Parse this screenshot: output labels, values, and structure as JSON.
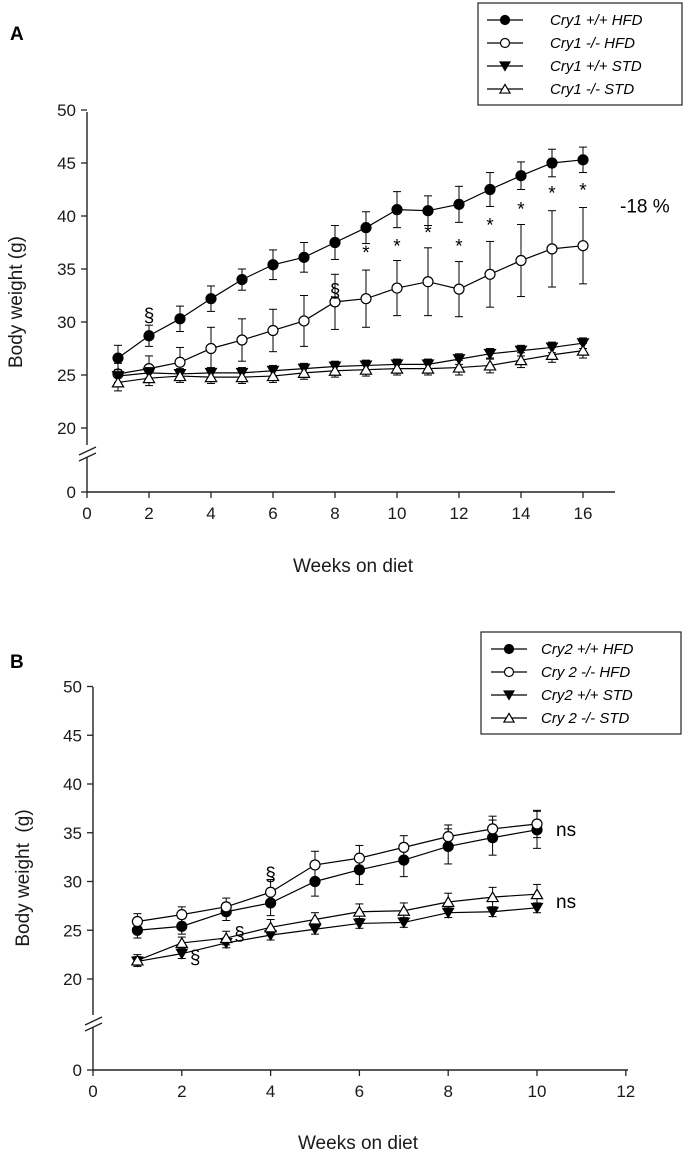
{
  "chart_data": [
    {
      "panel": "A",
      "type": "line",
      "xlabel": "Weeks on diet",
      "ylabel": "Body weight (g)",
      "xlim": [
        0,
        17
      ],
      "x_ticks": [
        0,
        2,
        4,
        6,
        8,
        10,
        12,
        14,
        16
      ],
      "y_ticks": [
        0,
        20,
        25,
        30,
        35,
        40,
        45,
        50
      ],
      "y_break": [
        0,
        20
      ],
      "x": [
        1,
        2,
        3,
        4,
        5,
        6,
        7,
        8,
        9,
        10,
        11,
        12,
        13,
        14,
        15,
        16
      ],
      "series": [
        {
          "name": "+/+ HFD",
          "gene": "Cry1",
          "marker": "filled-circle",
          "values": [
            26.6,
            28.7,
            30.3,
            32.2,
            34.0,
            35.4,
            36.1,
            37.5,
            38.9,
            40.6,
            40.5,
            41.1,
            42.5,
            43.8,
            45.0,
            45.3
          ],
          "errors": [
            1.2,
            1.0,
            1.2,
            1.2,
            1.0,
            1.4,
            1.4,
            1.6,
            1.5,
            1.7,
            1.4,
            1.7,
            1.6,
            1.3,
            1.3,
            1.2
          ]
        },
        {
          "name": "-/-  HFD",
          "gene": "Cry1",
          "marker": "open-circle",
          "values": [
            25.1,
            25.6,
            26.2,
            27.5,
            28.3,
            29.2,
            30.1,
            31.9,
            32.2,
            33.2,
            33.8,
            33.1,
            34.5,
            35.8,
            36.9,
            37.2
          ],
          "errors": [
            1.0,
            1.2,
            1.4,
            2.0,
            2.0,
            2.0,
            2.4,
            2.6,
            2.7,
            2.6,
            3.2,
            2.6,
            3.1,
            3.4,
            3.6,
            3.6
          ]
        },
        {
          "name": "+/+ STD",
          "gene": "Cry1",
          "marker": "filled-triangle-down",
          "values": [
            24.9,
            25.2,
            25.1,
            25.2,
            25.2,
            25.4,
            25.6,
            25.8,
            25.9,
            26.0,
            26.0,
            26.5,
            27.0,
            27.3,
            27.6,
            28.0
          ],
          "errors": [
            0.6,
            0.5,
            0.5,
            0.5,
            0.5,
            0.5,
            0.5,
            0.5,
            0.5,
            0.5,
            0.5,
            0.5,
            0.5,
            0.5,
            0.5,
            0.5
          ]
        },
        {
          "name": "-/-   STD",
          "gene": "Cry1",
          "marker": "open-triangle-up",
          "values": [
            24.3,
            24.7,
            24.9,
            24.8,
            24.8,
            24.9,
            25.2,
            25.4,
            25.5,
            25.6,
            25.6,
            25.7,
            25.9,
            26.4,
            26.9,
            27.3
          ],
          "errors": [
            0.8,
            0.7,
            0.6,
            0.6,
            0.6,
            0.6,
            0.6,
            0.6,
            0.6,
            0.6,
            0.6,
            0.7,
            0.7,
            0.7,
            0.7,
            0.7
          ]
        }
      ],
      "annotations": [
        {
          "text": "§",
          "x": 2,
          "y": 30.7
        },
        {
          "text": "§",
          "x": 8,
          "y": 33.0
        },
        {
          "text": "*",
          "x": 9,
          "y": 36.6
        },
        {
          "text": "*",
          "x": 10,
          "y": 37.2
        },
        {
          "text": "*",
          "x": 11,
          "y": 38.5
        },
        {
          "text": "*",
          "x": 12,
          "y": 37.2
        },
        {
          "text": "*",
          "x": 13,
          "y": 39.2
        },
        {
          "text": "*",
          "x": 14,
          "y": 40.7
        },
        {
          "text": "*",
          "x": 15,
          "y": 42.2
        },
        {
          "text": "*",
          "x": 16,
          "y": 42.5
        }
      ],
      "side_label": {
        "text": "-18 %",
        "y": 41.0
      }
    },
    {
      "panel": "B",
      "type": "line",
      "xlabel": "Weeks on diet",
      "ylabel": "Body weight  (g)",
      "xlim": [
        0,
        12
      ],
      "x_ticks": [
        0,
        2,
        4,
        6,
        8,
        10,
        12
      ],
      "y_ticks": [
        0,
        20,
        25,
        30,
        35,
        40,
        45,
        50
      ],
      "y_break": [
        0,
        20
      ],
      "x": [
        1,
        2,
        3,
        4,
        5,
        6,
        7,
        8,
        9,
        10
      ],
      "series": [
        {
          "name": "+/+ HFD",
          "gene": "Cry2",
          "marker": "filled-circle",
          "values": [
            25.0,
            25.4,
            26.9,
            27.8,
            30.0,
            31.2,
            32.2,
            33.6,
            34.5,
            35.3
          ],
          "errors": [
            0.8,
            0.8,
            0.9,
            1.3,
            1.5,
            1.5,
            1.7,
            1.8,
            1.8,
            1.9
          ]
        },
        {
          "name": "-/-  HFD",
          "gene": "Cry 2",
          "marker": "open-circle",
          "values": [
            25.9,
            26.6,
            27.4,
            28.9,
            31.7,
            32.4,
            33.5,
            34.6,
            35.4,
            35.9
          ],
          "errors": [
            0.8,
            0.8,
            0.9,
            1.3,
            1.4,
            1.3,
            1.2,
            1.2,
            1.3,
            1.4
          ]
        },
        {
          "name": "+/+ STD",
          "gene": "Cry2",
          "marker": "filled-triangle-down",
          "values": [
            21.8,
            22.6,
            23.7,
            24.5,
            25.1,
            25.7,
            25.8,
            26.8,
            26.9,
            27.3
          ],
          "errors": [
            0.5,
            0.5,
            0.5,
            0.5,
            0.5,
            0.5,
            0.5,
            0.5,
            0.5,
            0.5
          ]
        },
        {
          "name": "-/-  STD",
          "gene": "Cry 2",
          "marker": "open-triangle-up",
          "values": [
            21.9,
            23.7,
            24.2,
            25.3,
            26.1,
            26.9,
            27.0,
            27.9,
            28.4,
            28.7
          ],
          "errors": [
            0.6,
            0.6,
            0.7,
            0.8,
            0.7,
            0.8,
            0.8,
            0.9,
            1.0,
            1.0
          ]
        }
      ],
      "annotations": [
        {
          "text": "§",
          "x": 4,
          "y": 30.8
        },
        {
          "text": "§",
          "x": 3.3,
          "y": 24.7
        },
        {
          "text": "§",
          "x": 2.3,
          "y": 22.3
        }
      ],
      "side_labels": [
        {
          "text": "ns",
          "y": 35.4
        },
        {
          "text": "ns",
          "y": 28.0
        }
      ]
    }
  ]
}
